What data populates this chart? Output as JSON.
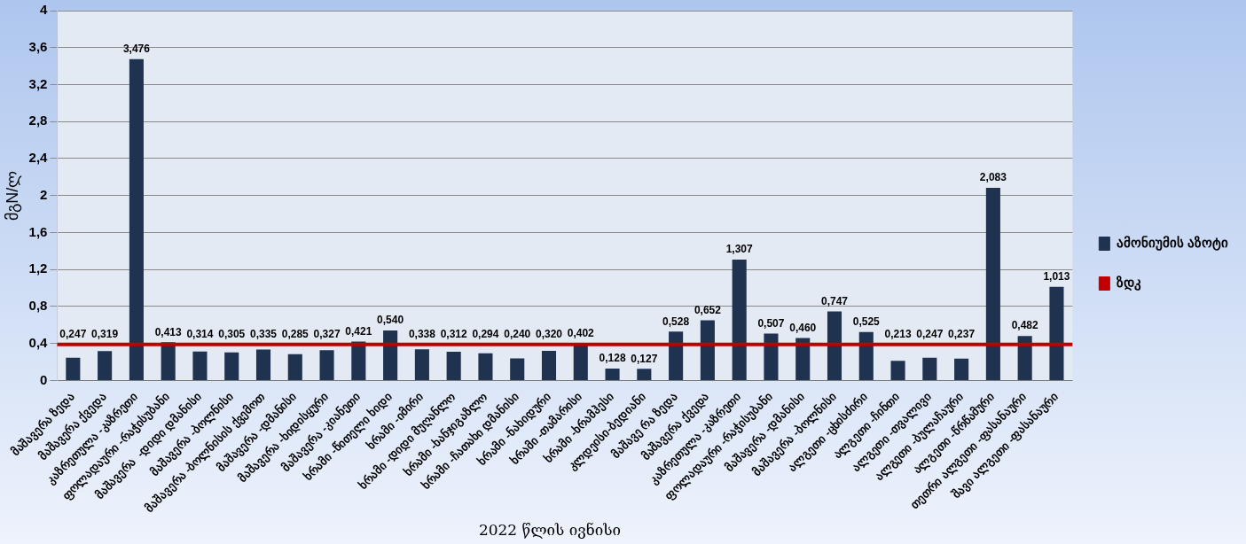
{
  "chart_data": {
    "type": "bar",
    "ylabel": "მგN/ლ",
    "xlabel": "2022 წლის ივნისი",
    "categories": [
      "მაშავერა ზედა",
      "მაშავერა ქვედა",
      "კაზრეთულა -კაზრეთი",
      "ფოლადაური -რაჭისუბანი",
      "მაშავერა  -დიდი დმანისი",
      "მაშავერა -ბოლნისი",
      "მაშავერა -ბოლნისის ქვემოთ",
      "მაშავერა -დმანისი",
      "მაშავერა -ხიდისყური",
      "მაშავერა -კიანეთი",
      "ხრამი -წითელი ხიდი",
      "ხრამი -იმირი",
      "ხრამი -დიდი მუღანლო",
      "ხრამი -ხანჯიგაზლო",
      "ხრამი -ჩათახი დმანისი",
      "ხრამი -ნახიდური",
      "ხრამი -თამარისი",
      "ხრამი -ხრამჰესი",
      "კლდეისი-ბედიანი",
      "მაშავე რა ზედა",
      "მაშავერა ქვედა",
      "კაზრეთულა -კაზრეთი",
      "ფოლადაური -რაჭისუბანი",
      "მაშავერა -დმანისი",
      "მაშავერა -ბოლნისი",
      "ალგეთი -ცხისძირი",
      "ალგეთი -ჩინთი",
      "ალგეთი -თვალივი",
      "ალგეთი -ბულაჩაური",
      "ალგეთი -წრწამური",
      "თეთრი ალგეთი -ფასანაური",
      "შავი ალგეთი -ფასანაური"
    ],
    "series": [
      {
        "name": "ამონიუმის აზოტი",
        "color": "#1f3350",
        "values": [
          0.247,
          0.319,
          3.476,
          0.413,
          0.314,
          0.305,
          0.335,
          0.285,
          0.327,
          0.421,
          0.54,
          0.338,
          0.312,
          0.294,
          0.24,
          0.32,
          0.402,
          0.128,
          0.127,
          0.528,
          0.652,
          1.307,
          0.507,
          0.46,
          0.747,
          0.525,
          0.213,
          0.247,
          0.237,
          2.083,
          0.482,
          1.013
        ],
        "value_labels": [
          "0,247",
          "0,319",
          "3,476",
          "0,413",
          "0,314",
          "0,305",
          "0,335",
          "0,285",
          "0,327",
          "0,421",
          "0,540",
          "0,338",
          "0,312",
          "0,294",
          "0,240",
          "0,320",
          "0,402",
          "0,128",
          "0,127",
          "0,528",
          "0,652",
          "1,307",
          "0,507",
          "0,460",
          "0,747",
          "0,525",
          "0,213",
          "0,247",
          "0,237",
          "2,083",
          "0,482",
          "1,013"
        ]
      }
    ],
    "ref_lines": [
      {
        "axis": "y",
        "value": 0.39,
        "label": "ზდკ",
        "color": "#c00000"
      }
    ],
    "ylim": [
      0,
      4
    ],
    "yticks": [
      0,
      {
        "value": 0.4,
        "label": "0,4"
      },
      {
        "value": 0.8,
        "label": "0,8"
      },
      {
        "value": 1.2,
        "label": "1,2"
      },
      {
        "value": 1.6,
        "label": "1,6"
      },
      2,
      {
        "value": 2.4,
        "label": "2,4"
      },
      {
        "value": 2.8,
        "label": "2,8"
      },
      {
        "value": 3.2,
        "label": "3,2"
      },
      {
        "value": 3.6,
        "label": "3,6"
      },
      4
    ],
    "grid": "y",
    "legend": "right"
  }
}
